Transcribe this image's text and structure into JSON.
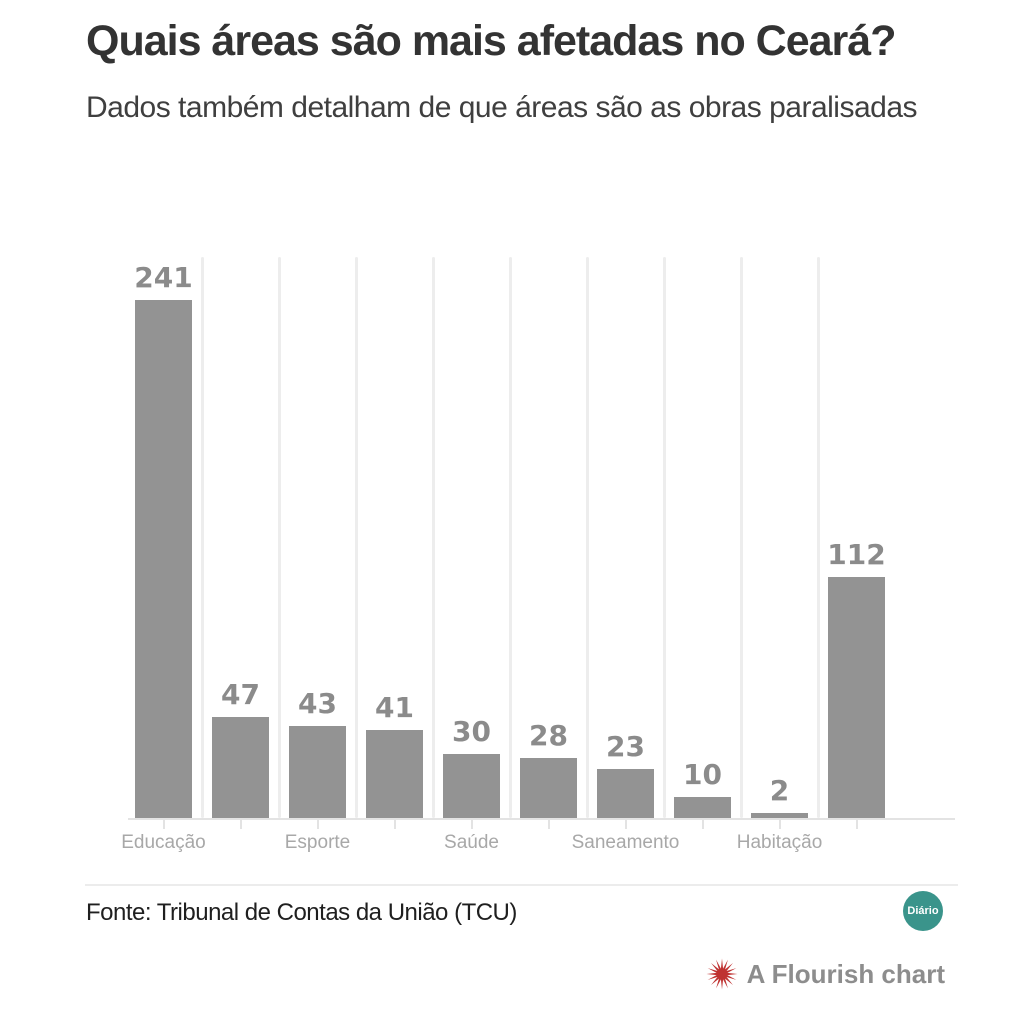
{
  "header": {
    "title": "Quais áreas são mais afetadas no Ceará?",
    "subtitle": "Dados também detalham de que áreas são as obras paralisadas"
  },
  "chart_data": {
    "type": "bar",
    "orientation": "vertical",
    "values": [
      241,
      47,
      43,
      41,
      30,
      28,
      23,
      10,
      2,
      112
    ],
    "data_labels": [
      "241",
      "47",
      "43",
      "41",
      "30",
      "28",
      "23",
      "10",
      "2",
      "112"
    ],
    "x_tick_labels": [
      "Educação",
      "",
      "Esporte",
      "",
      "Saúde",
      "",
      "Saneamento",
      "",
      "Habitação",
      ""
    ],
    "categories_labeled": [
      "Educação",
      "Esporte",
      "Saúde",
      "Saneamento",
      "Habitação"
    ],
    "ymax": 241,
    "legend": "none",
    "grid": "vertical lines between bars",
    "bar_color": "#939393",
    "value_label_color": "#8b8b8b",
    "axis_label_color": "#a8a8a8",
    "gridline_color": "#ededed",
    "axis_line_color": "#e3e3e3"
  },
  "footer": {
    "source": "Fonte: Tribunal de Contas da União (TCU)",
    "badge_label": "Diário",
    "badge_color": "#3a948b"
  },
  "credit": {
    "label": "A Flourish chart",
    "icon_color": "#bf3231"
  }
}
